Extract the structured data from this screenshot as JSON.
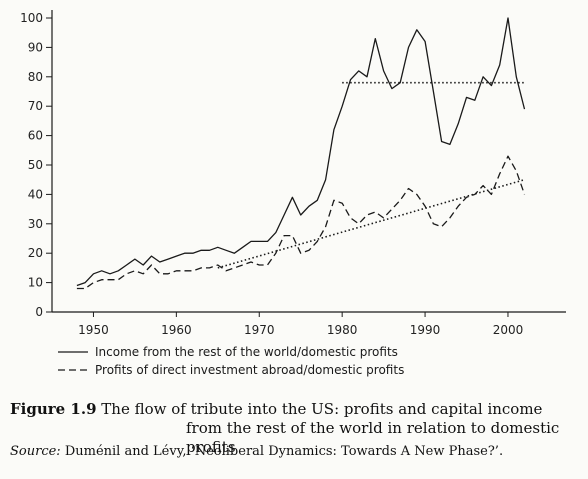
{
  "chart_data": {
    "type": "line",
    "xlim": [
      1945,
      2007
    ],
    "ylim": [
      0,
      100
    ],
    "x_ticks": [
      1950,
      1960,
      1970,
      1980,
      1990,
      2000
    ],
    "y_ticks": [
      0,
      10,
      20,
      30,
      40,
      50,
      60,
      70,
      80,
      90,
      100
    ],
    "grid": false,
    "legend_position": "below",
    "series": [
      {
        "name": "Income from the rest of the world/domestic profits",
        "style": "solid",
        "x": [
          1948,
          1949,
          1950,
          1951,
          1952,
          1953,
          1954,
          1955,
          1956,
          1957,
          1958,
          1959,
          1960,
          1961,
          1962,
          1963,
          1964,
          1965,
          1966,
          1967,
          1968,
          1969,
          1970,
          1971,
          1972,
          1973,
          1974,
          1975,
          1976,
          1977,
          1978,
          1979,
          1980,
          1981,
          1982,
          1983,
          1984,
          1985,
          1986,
          1987,
          1988,
          1989,
          1990,
          1991,
          1992,
          1993,
          1994,
          1995,
          1996,
          1997,
          1998,
          1999,
          2000,
          2001,
          2002
        ],
        "values": [
          9,
          10,
          13,
          14,
          13,
          14,
          16,
          18,
          16,
          19,
          17,
          18,
          19,
          20,
          20,
          21,
          21,
          22,
          21,
          20,
          22,
          24,
          24,
          24,
          27,
          33,
          39,
          33,
          36,
          38,
          45,
          62,
          70,
          79,
          82,
          80,
          93,
          82,
          76,
          78,
          90,
          96,
          92,
          75,
          58,
          57,
          64,
          73,
          72,
          80,
          77,
          84,
          100,
          80,
          69
        ]
      },
      {
        "name": "Profits of direct investment abroad/domestic profits",
        "style": "dashed",
        "x": [
          1948,
          1949,
          1950,
          1951,
          1952,
          1953,
          1954,
          1955,
          1956,
          1957,
          1958,
          1959,
          1960,
          1961,
          1962,
          1963,
          1964,
          1965,
          1966,
          1967,
          1968,
          1969,
          1970,
          1971,
          1972,
          1973,
          1974,
          1975,
          1976,
          1977,
          1978,
          1979,
          1980,
          1981,
          1982,
          1983,
          1984,
          1985,
          1986,
          1987,
          1988,
          1989,
          1990,
          1991,
          1992,
          1993,
          1994,
          1995,
          1996,
          1997,
          1998,
          1999,
          2000,
          2001,
          2002
        ],
        "values": [
          8,
          8,
          10,
          11,
          11,
          11,
          13,
          14,
          13,
          16,
          13,
          13,
          14,
          14,
          14,
          15,
          15,
          16,
          14,
          15,
          16,
          17,
          16,
          16,
          20,
          26,
          26,
          20,
          21,
          24,
          29,
          38,
          37,
          32,
          30,
          33,
          34,
          32,
          35,
          38,
          42,
          40,
          36,
          30,
          29,
          32,
          36,
          39,
          40,
          43,
          40,
          47,
          53,
          48,
          40
        ]
      },
      {
        "name": "",
        "style": "dotted",
        "x": [
          1980,
          2002
        ],
        "values": [
          78,
          78
        ]
      },
      {
        "name": "",
        "style": "dotted",
        "x": [
          1965,
          2002
        ],
        "values": [
          15,
          45
        ]
      }
    ]
  },
  "legend": [
    {
      "label": "Income from the rest of the world/domestic profits",
      "style": "solid"
    },
    {
      "label": "Profits of direct investment abroad/domestic profits",
      "style": "dashed"
    }
  ],
  "caption": {
    "number": "Figure 1.9",
    "line1": "The flow of tribute into the US: profits and capital income",
    "line2": "from the rest of the world in relation to domestic profits"
  },
  "source": {
    "label": "Source:",
    "text": "Duménil and Lévy, ‘Neoliberal Dynamics: Towards A New Phase?’."
  },
  "colors": {
    "ink": "#1a1a1a",
    "background": "#fbfbf8"
  }
}
